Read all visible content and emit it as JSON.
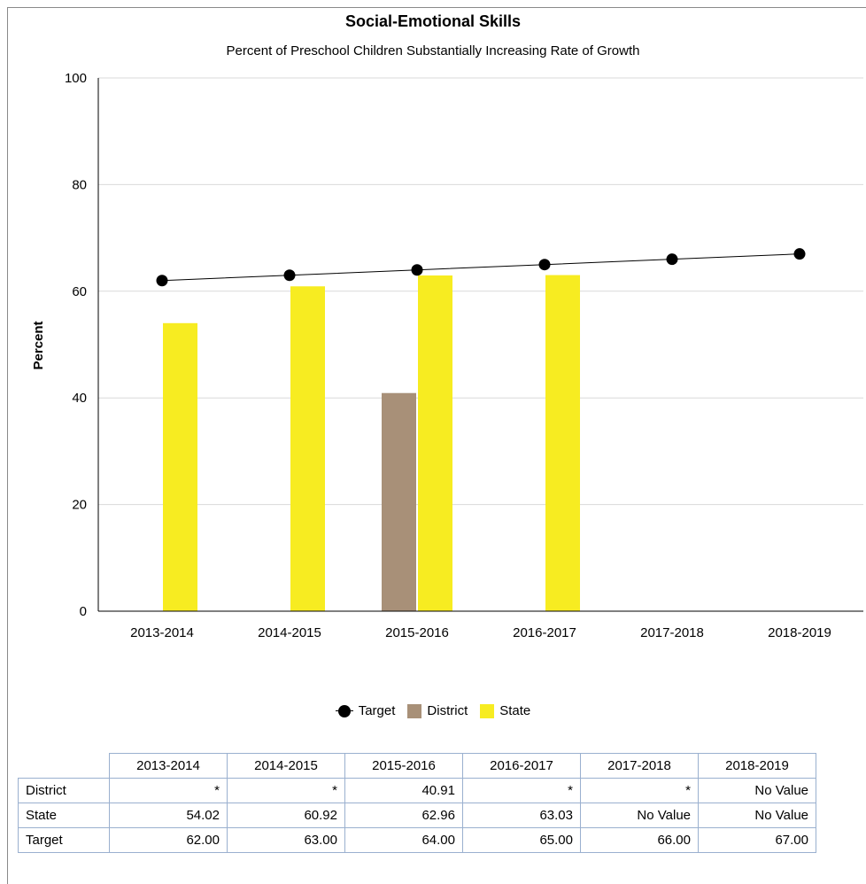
{
  "chart_data": {
    "type": "bar",
    "title": "Social-Emotional Skills",
    "subtitle": "Percent of Preschool Children Substantially Increasing Rate of Growth",
    "ylabel": "Percent",
    "xlabel": "",
    "ylim": [
      0,
      100
    ],
    "yticks": [
      "0",
      "20",
      "40",
      "60",
      "80",
      "100"
    ],
    "grid": true,
    "legend_position": "bottom",
    "categories": [
      "2013-2014",
      "2014-2015",
      "2015-2016",
      "2016-2017",
      "2017-2018",
      "2018-2019"
    ],
    "series": [
      {
        "name": "District",
        "kind": "bar",
        "color": "#a89078",
        "values": [
          null,
          null,
          40.91,
          null,
          null,
          null
        ]
      },
      {
        "name": "State",
        "kind": "bar",
        "color": "#f7ec21",
        "values": [
          54.02,
          60.92,
          62.96,
          63.03,
          null,
          null
        ]
      },
      {
        "name": "Target",
        "kind": "line",
        "color": "#000000",
        "values": [
          62.0,
          63.0,
          64.0,
          65.0,
          66.0,
          67.0
        ]
      }
    ]
  },
  "legend": {
    "items": [
      "Target",
      "District",
      "State"
    ]
  },
  "table": {
    "headers": [
      "2013-2014",
      "2014-2015",
      "2015-2016",
      "2016-2017",
      "2017-2018",
      "2018-2019"
    ],
    "rows": [
      {
        "label": "District",
        "cells": [
          "*",
          "*",
          "40.91",
          "*",
          "*",
          "No Value"
        ]
      },
      {
        "label": "State",
        "cells": [
          "54.02",
          "60.92",
          "62.96",
          "63.03",
          "No Value",
          "No Value"
        ]
      },
      {
        "label": "Target",
        "cells": [
          "62.00",
          "63.00",
          "64.00",
          "65.00",
          "66.00",
          "67.00"
        ]
      }
    ]
  }
}
